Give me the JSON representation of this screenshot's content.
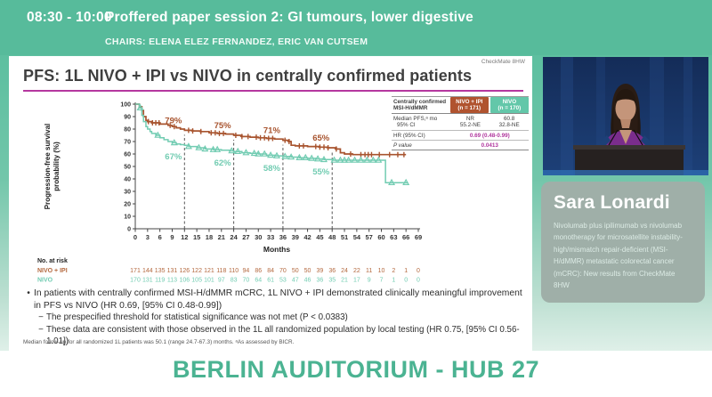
{
  "header": {
    "time": "08:30 - 10:00",
    "session_title": "Proffered paper session 2: GI tumours, lower digestive",
    "chairs": "CHAIRS: ELENA ELEZ FERNANDEZ, ERIC VAN CUTSEM"
  },
  "slide": {
    "watermark": "CheckMate 8HW",
    "title": "PFS: 1L NIVO + IPI vs NIVO in centrally confirmed patients",
    "results_table": {
      "header_label_line1": "Centrally confirmed",
      "header_label_line2": "MSI-H/dMMR",
      "col1_line1": "NIVO + IPI",
      "col1_line2": "(n = 171)",
      "col2_line1": "NIVO",
      "col2_line2": "(n = 170)",
      "median_label_line1": "Median PFS,ᵃ mo",
      "median_label_line2": "95% CI",
      "median_col1_line1": "NR",
      "median_col1_line2": "55.2-NE",
      "median_col2_line1": "60.8",
      "median_col2_line2": "32.8-NE",
      "hr_label": "HR (95% CI)",
      "hr_value": "0.69 (0.48-0.99)",
      "p_label": "P value",
      "p_value": "0.0413"
    },
    "bullets": [
      {
        "marker": "•",
        "text": "In patients with centrally confirmed MSI-H/dMMR mCRC, 1L NIVO + IPI demonstrated clinically meaningful improvement in PFS vs NIVO (HR 0.69, [95% CI 0.48-0.99])"
      },
      {
        "marker": "−",
        "text": "The prespecified threshold for statistical significance was not met (P < 0.0383)"
      },
      {
        "marker": "−",
        "text": "These data are consistent with those observed in the 1L all randomized population by local testing (HR 0.75, [95% CI 0.56-1.01])"
      }
    ],
    "footnote": "Median follow-up for all randomized 1L patients was 50.1 (range 24.7-67.3) months. ᵃAs assessed by BICR."
  },
  "chart_data": {
    "type": "line",
    "subtype": "kaplan-meier",
    "xlabel": "Months",
    "ylabel_line1": "Progression-free survival",
    "ylabel_line2": "probability (%)",
    "xlim": [
      0,
      69
    ],
    "ylim": [
      0,
      100
    ],
    "xticks": [
      0,
      3,
      6,
      9,
      12,
      15,
      18,
      21,
      24,
      27,
      30,
      33,
      36,
      39,
      42,
      45,
      48,
      51,
      54,
      57,
      60,
      63,
      66,
      69
    ],
    "yticks": [
      0,
      10,
      20,
      30,
      40,
      50,
      60,
      70,
      80,
      90,
      100
    ],
    "dashed_x": [
      12,
      24,
      36,
      48
    ],
    "grid": false,
    "series": [
      {
        "name": "NIVO + IPI",
        "color": "#a8542f",
        "censor_style": "plus",
        "milestones": [
          {
            "x": 12,
            "label": "79%"
          },
          {
            "x": 24,
            "label": "75%"
          },
          {
            "x": 36,
            "label": "71%"
          },
          {
            "x": 48,
            "label": "65%"
          }
        ],
        "points": [
          [
            0,
            100
          ],
          [
            1,
            98
          ],
          [
            1.6,
            95
          ],
          [
            2,
            90
          ],
          [
            2.6,
            87
          ],
          [
            3,
            86
          ],
          [
            4,
            85
          ],
          [
            6,
            84
          ],
          [
            8,
            83
          ],
          [
            9,
            82
          ],
          [
            10,
            81
          ],
          [
            11,
            80
          ],
          [
            12,
            79
          ],
          [
            14,
            78.5
          ],
          [
            16,
            78
          ],
          [
            18,
            77
          ],
          [
            20,
            76.5
          ],
          [
            22,
            76
          ],
          [
            24,
            75
          ],
          [
            26,
            74
          ],
          [
            28,
            73.5
          ],
          [
            30,
            73
          ],
          [
            32,
            72.5
          ],
          [
            34,
            72
          ],
          [
            36,
            71
          ],
          [
            37.5,
            70
          ],
          [
            38,
            67
          ],
          [
            39,
            66.5
          ],
          [
            42,
            66
          ],
          [
            45,
            65.5
          ],
          [
            47,
            65
          ],
          [
            49,
            64
          ],
          [
            50,
            61
          ],
          [
            51,
            60
          ],
          [
            53,
            59.5
          ],
          [
            66,
            59.5
          ]
        ],
        "censor_x": [
          3.2,
          4.2,
          5,
          5.8,
          8.5,
          9.5,
          13,
          14,
          16,
          18.5,
          19.5,
          20.5,
          21.5,
          24.5,
          26,
          27.5,
          29.5,
          30.5,
          31.5,
          32.5,
          33.5,
          36.5,
          37.5,
          40,
          41,
          44,
          45,
          46,
          47,
          49,
          52.5,
          55,
          56,
          56.8,
          57.6,
          59.5,
          62,
          64,
          65.5
        ]
      },
      {
        "name": "NIVO",
        "color": "#72ccb2",
        "censor_style": "triangle",
        "milestones": [
          {
            "x": 12,
            "label": "67%"
          },
          {
            "x": 24,
            "label": "62%"
          },
          {
            "x": 36,
            "label": "58%"
          },
          {
            "x": 48,
            "label": "55%"
          }
        ],
        "points": [
          [
            0,
            100
          ],
          [
            1,
            97
          ],
          [
            1.6,
            91
          ],
          [
            2,
            86
          ],
          [
            2.6,
            82
          ],
          [
            3,
            80
          ],
          [
            3.6,
            78
          ],
          [
            4,
            76.5
          ],
          [
            5,
            75
          ],
          [
            6,
            73
          ],
          [
            7,
            71.5
          ],
          [
            8,
            70
          ],
          [
            9,
            69
          ],
          [
            10,
            68
          ],
          [
            11,
            67.5
          ],
          [
            12,
            67
          ],
          [
            13,
            66
          ],
          [
            15,
            65
          ],
          [
            17,
            64
          ],
          [
            19,
            63.5
          ],
          [
            21,
            63
          ],
          [
            23,
            62.5
          ],
          [
            24,
            62
          ],
          [
            26,
            61
          ],
          [
            28,
            60.5
          ],
          [
            30,
            60
          ],
          [
            32,
            59
          ],
          [
            34,
            58.5
          ],
          [
            36,
            58
          ],
          [
            38,
            57.5
          ],
          [
            40,
            57
          ],
          [
            42,
            56.5
          ],
          [
            44,
            56
          ],
          [
            46,
            55.5
          ],
          [
            48,
            55
          ],
          [
            60.5,
            55
          ],
          [
            61,
            37
          ],
          [
            66.5,
            37
          ]
        ],
        "censor_x": [
          1.2,
          5.5,
          9.5,
          13,
          15.5,
          17,
          19,
          20,
          23.5,
          25,
          27,
          29,
          30,
          31.5,
          33,
          34.5,
          36.5,
          38,
          40,
          41.5,
          43,
          44.5,
          46,
          48.5,
          50,
          51,
          52,
          53.5,
          55,
          56.5,
          58,
          59.3,
          62.5,
          66
        ]
      }
    ],
    "at_risk": {
      "title": "No. at risk",
      "rows": [
        {
          "name": "NIVO + IPI",
          "color": "#b4693f",
          "values": [
            171,
            144,
            135,
            131,
            126,
            122,
            121,
            118,
            110,
            94,
            86,
            84,
            70,
            50,
            50,
            39,
            36,
            24,
            22,
            11,
            10,
            2,
            1,
            0
          ]
        },
        {
          "name": "NIVO",
          "color": "#72ccb2",
          "values": [
            170,
            131,
            119,
            113,
            106,
            105,
            101,
            97,
            83,
            70,
            64,
            61,
            53,
            47,
            46,
            36,
            35,
            21,
            17,
            9,
            7,
            1,
            0,
            0
          ]
        }
      ]
    }
  },
  "speaker": {
    "name": "Sara Lonardi",
    "talk_title": "Nivolumab plus ipilimumab vs nivolumab monotherapy for microsatellite instability-high/mismatch repair-deficient (MSI-H/dMMR) metastatic colorectal cancer (mCRC): New results from CheckMate 8HW"
  },
  "footer": {
    "location": "BERLIN AUDITORIUM - HUB 27"
  },
  "colors": {
    "topbar": "#57bb9b",
    "accent_underline": "#b5379f",
    "stat_magenta": "#b0359d",
    "nivo_ipi": "#a8542f",
    "nivo": "#72ccb2",
    "footer_text": "#4bb392"
  }
}
